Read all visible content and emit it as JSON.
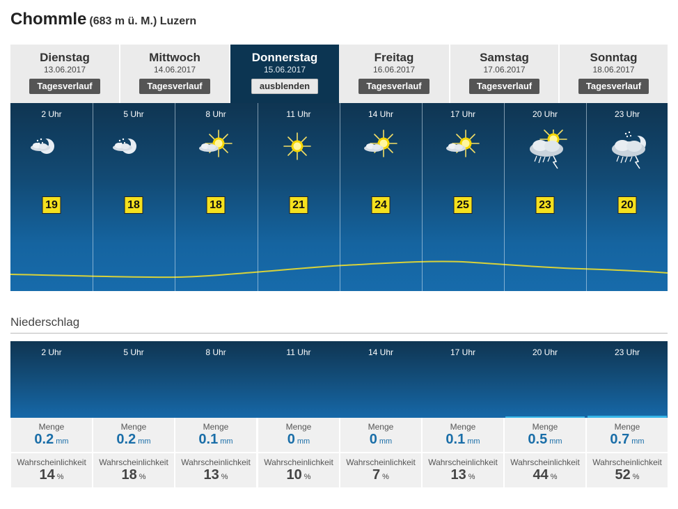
{
  "location": {
    "name": "Chommle",
    "detail": "(683 m ü. M.) Luzern"
  },
  "days": [
    {
      "name": "Dienstag",
      "date": "13.06.2017",
      "button": "Tagesverlauf",
      "active": false
    },
    {
      "name": "Mittwoch",
      "date": "14.06.2017",
      "button": "Tagesverlauf",
      "active": false
    },
    {
      "name": "Donnerstag",
      "date": "15.06.2017",
      "button": "ausblenden",
      "active": true
    },
    {
      "name": "Freitag",
      "date": "16.06.2017",
      "button": "Tagesverlauf",
      "active": false
    },
    {
      "name": "Samstag",
      "date": "17.06.2017",
      "button": "Tagesverlauf",
      "active": false
    },
    {
      "name": "Sonntag",
      "date": "18.06.2017",
      "button": "Tagesverlauf",
      "active": false
    }
  ],
  "hours": [
    {
      "time": "2 Uhr",
      "icon": "moon-light-snow-icon",
      "temp": "19"
    },
    {
      "time": "5 Uhr",
      "icon": "moon-light-snow-icon",
      "temp": "18"
    },
    {
      "time": "8 Uhr",
      "icon": "sun-cloud-icon",
      "temp": "18"
    },
    {
      "time": "11 Uhr",
      "icon": "sun-icon",
      "temp": "21"
    },
    {
      "time": "14 Uhr",
      "icon": "sun-cloud-icon",
      "temp": "24"
    },
    {
      "time": "17 Uhr",
      "icon": "sun-cloud-icon",
      "temp": "25"
    },
    {
      "time": "20 Uhr",
      "icon": "thunderstorm-sun-icon",
      "temp": "23"
    },
    {
      "time": "23 Uhr",
      "icon": "thunderstorm-moon-icon",
      "temp": "20"
    }
  ],
  "precipitation": {
    "heading": "Niederschlag",
    "amount_label": "Menge",
    "amount_unit": "mm",
    "prob_label": "Wahrscheinlichkeit",
    "prob_unit": "%",
    "amounts": [
      "0.2",
      "0.2",
      "0.1",
      "0",
      "0",
      "0.1",
      "0.5",
      "0.7"
    ],
    "probabilities": [
      "14",
      "18",
      "13",
      "10",
      "7",
      "13",
      "44",
      "52"
    ]
  },
  "colors": {
    "temp_badge": "#f5e11e",
    "temp_line": "#d8d23a",
    "active_tab": "#0c3552",
    "precip_bar": "#37b6e8"
  }
}
